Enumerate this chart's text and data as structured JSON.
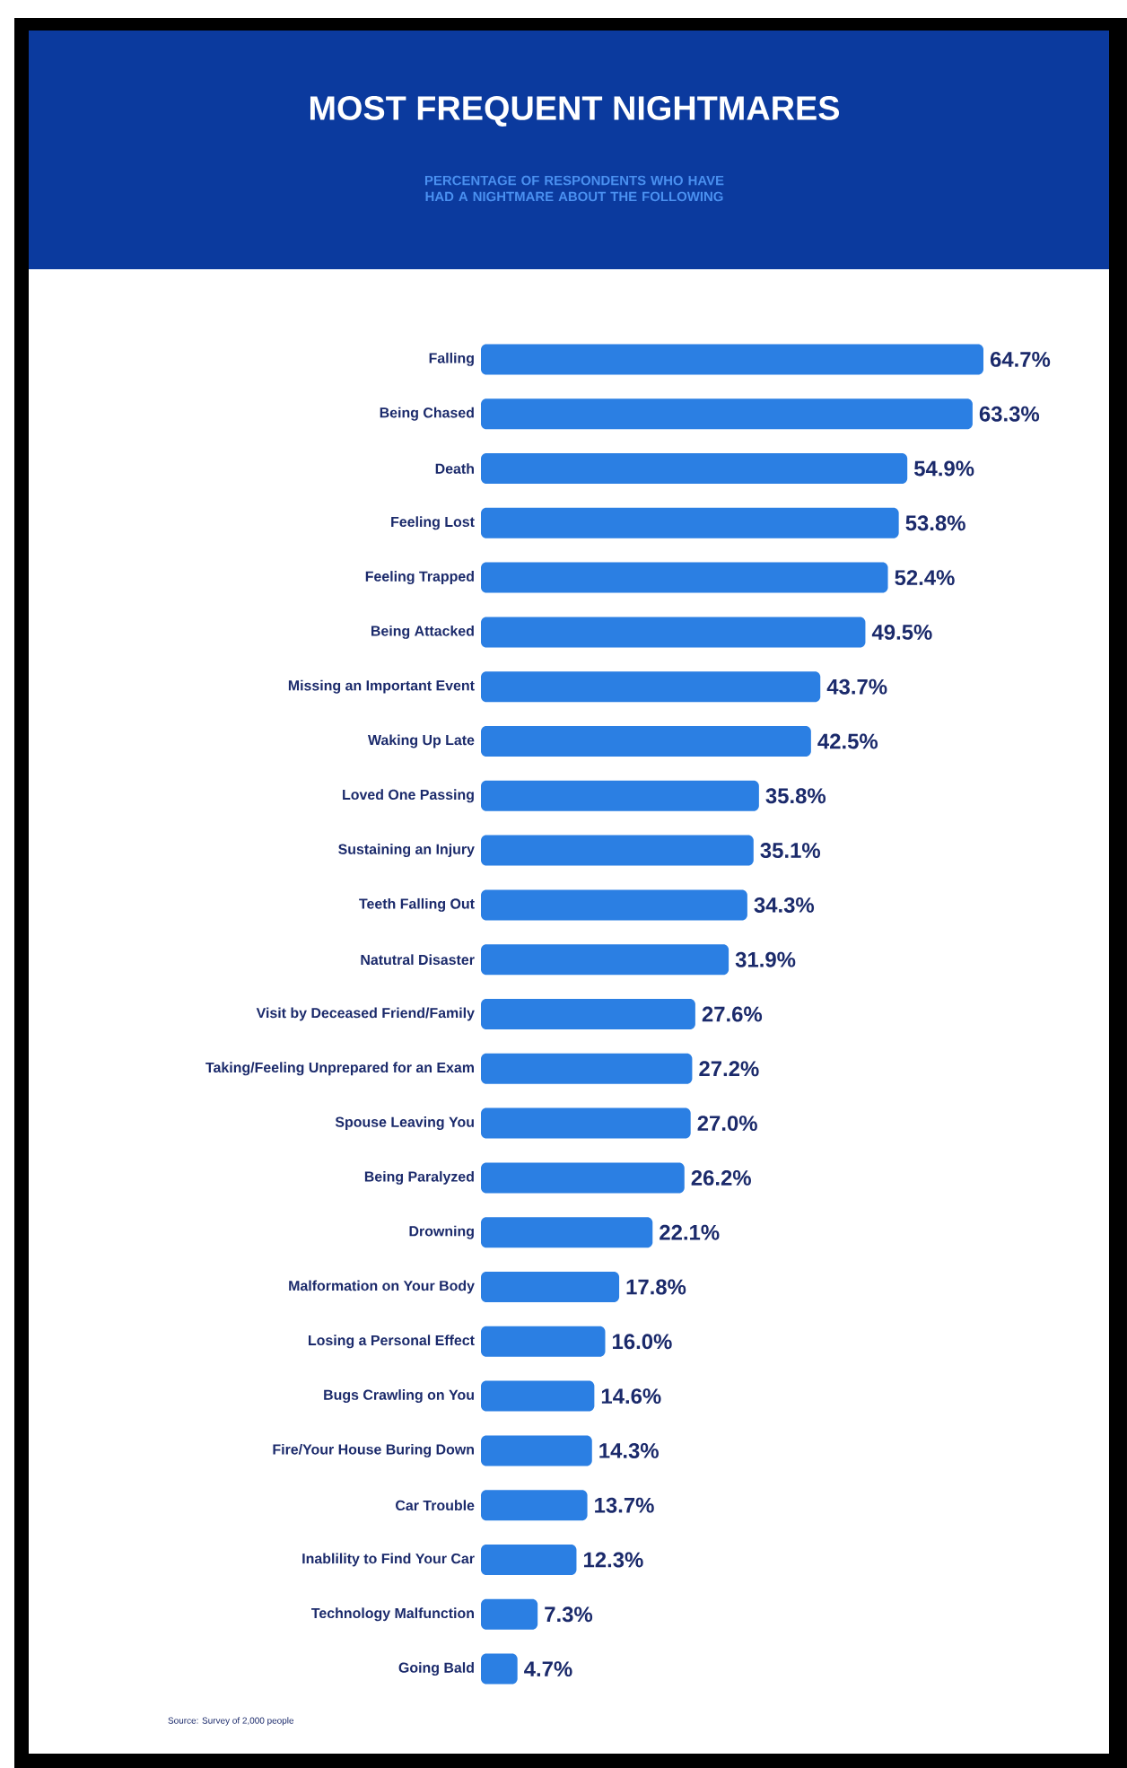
{
  "chart_data": {
    "type": "bar",
    "orientation": "horizontal",
    "title": "MOST FREQUENT NIGHTMARES",
    "subtitle": "PERCENTAGE OF RESPONDENTS WHO HAVE HAD A NIGHTMARE ABOUT THE FOLLOWING",
    "categories": [
      "Falling",
      "Being Chased",
      "Death",
      "Feeling Lost",
      "Feeling Trapped",
      "Being Attacked",
      "Missing an Important Event",
      "Waking Up Late",
      "Loved One Passing",
      "Sustaining an Injury",
      "Teeth Falling Out",
      "Natutral Disaster",
      "Visit by Deceased Friend/Family",
      "Taking/Feeling Unprepared for an Exam",
      "Spouse Leaving You",
      "Being Paralyzed",
      "Drowning",
      "Malformation on Your Body",
      "Losing a Personal Effect",
      "Bugs Crawling on You",
      "Fire/Your House Buring Down",
      "Car Trouble",
      "Inablility to Find Your Car",
      "Technology Malfunction",
      "Going Bald"
    ],
    "values": [
      64.7,
      63.3,
      54.9,
      53.8,
      52.4,
      49.5,
      43.7,
      42.5,
      35.8,
      35.1,
      34.3,
      31.9,
      27.6,
      27.2,
      27.0,
      26.2,
      22.1,
      17.8,
      16.0,
      14.6,
      14.3,
      13.7,
      12.3,
      7.3,
      4.7
    ],
    "value_labels": [
      "64.7%",
      "63.3%",
      "54.9%",
      "53.8%",
      "52.4%",
      "49.5%",
      "43.7%",
      "42.5%",
      "35.8%",
      "35.1%",
      "34.3%",
      "31.9%",
      "27.6%",
      "27.2%",
      "27.0%",
      "26.2%",
      "22.1%",
      "17.8%",
      "16.0%",
      "14.6%",
      "14.3%",
      "13.7%",
      "12.3%",
      "7.3%",
      "4.7%"
    ],
    "color": "#2b7fe3",
    "annotations": [
      "Source: Survey of 2,000 people"
    ]
  }
}
